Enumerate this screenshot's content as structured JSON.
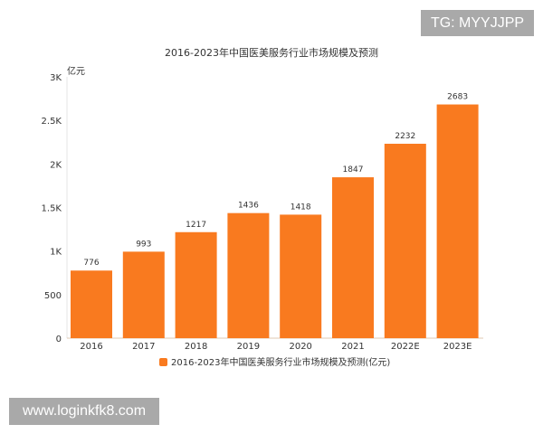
{
  "watermarks": {
    "top_right": "TG: MYYJJPP",
    "bottom_left": "www.loginkfk8.com"
  },
  "chart_data": {
    "type": "bar",
    "title": "2016-2023年中国医美服务行业市场规模及预测",
    "ylabel": "亿元",
    "xlabel": "",
    "categories": [
      "2016",
      "2017",
      "2018",
      "2019",
      "2020",
      "2021",
      "2022E",
      "2023E"
    ],
    "series": [
      {
        "name": "2016-2023年中国医美服务行业市场规模及预测(亿元)",
        "values": [
          776,
          993,
          1217,
          1436,
          1418,
          1847,
          2232,
          2683
        ],
        "color": "#f97a1f"
      }
    ],
    "ylim": [
      0,
      3000
    ],
    "yticks": [
      0,
      500,
      1000,
      1500,
      2000,
      2500,
      3000
    ],
    "ytick_labels": [
      "0",
      "500",
      "1K",
      "1.5K",
      "2K",
      "2.5K",
      "3K"
    ],
    "grid": false,
    "legend": "bottom",
    "data_labels": true
  }
}
